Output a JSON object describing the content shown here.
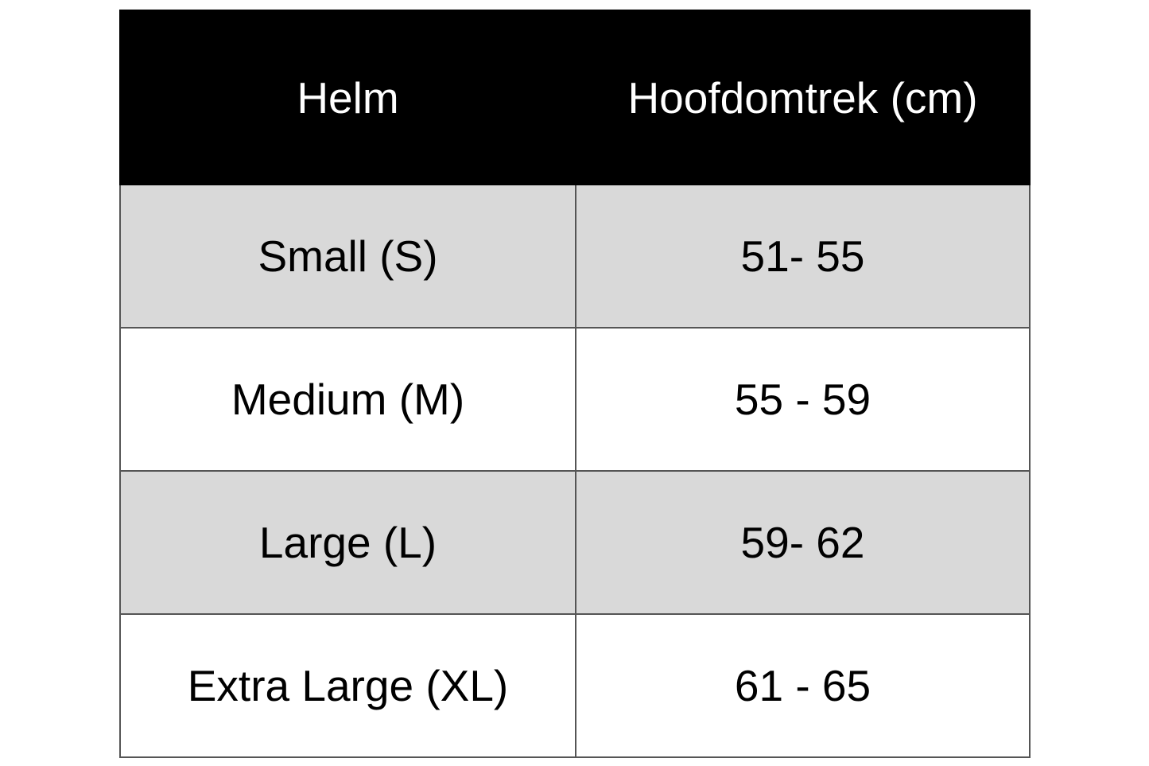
{
  "table": {
    "headers": [
      "Helm",
      "Hoofdomtrek (cm)"
    ],
    "rows": [
      [
        "Small (S)",
        "51- 55"
      ],
      [
        "Medium (M)",
        "55 - 59"
      ],
      [
        "Large (L)",
        "59- 62"
      ],
      [
        "Extra Large (XL)",
        "61 - 65"
      ]
    ]
  },
  "colors": {
    "header_bg": "#000000",
    "header_text": "#ffffff",
    "alt_row_bg": "#d9d9d9",
    "border": "#555555"
  }
}
